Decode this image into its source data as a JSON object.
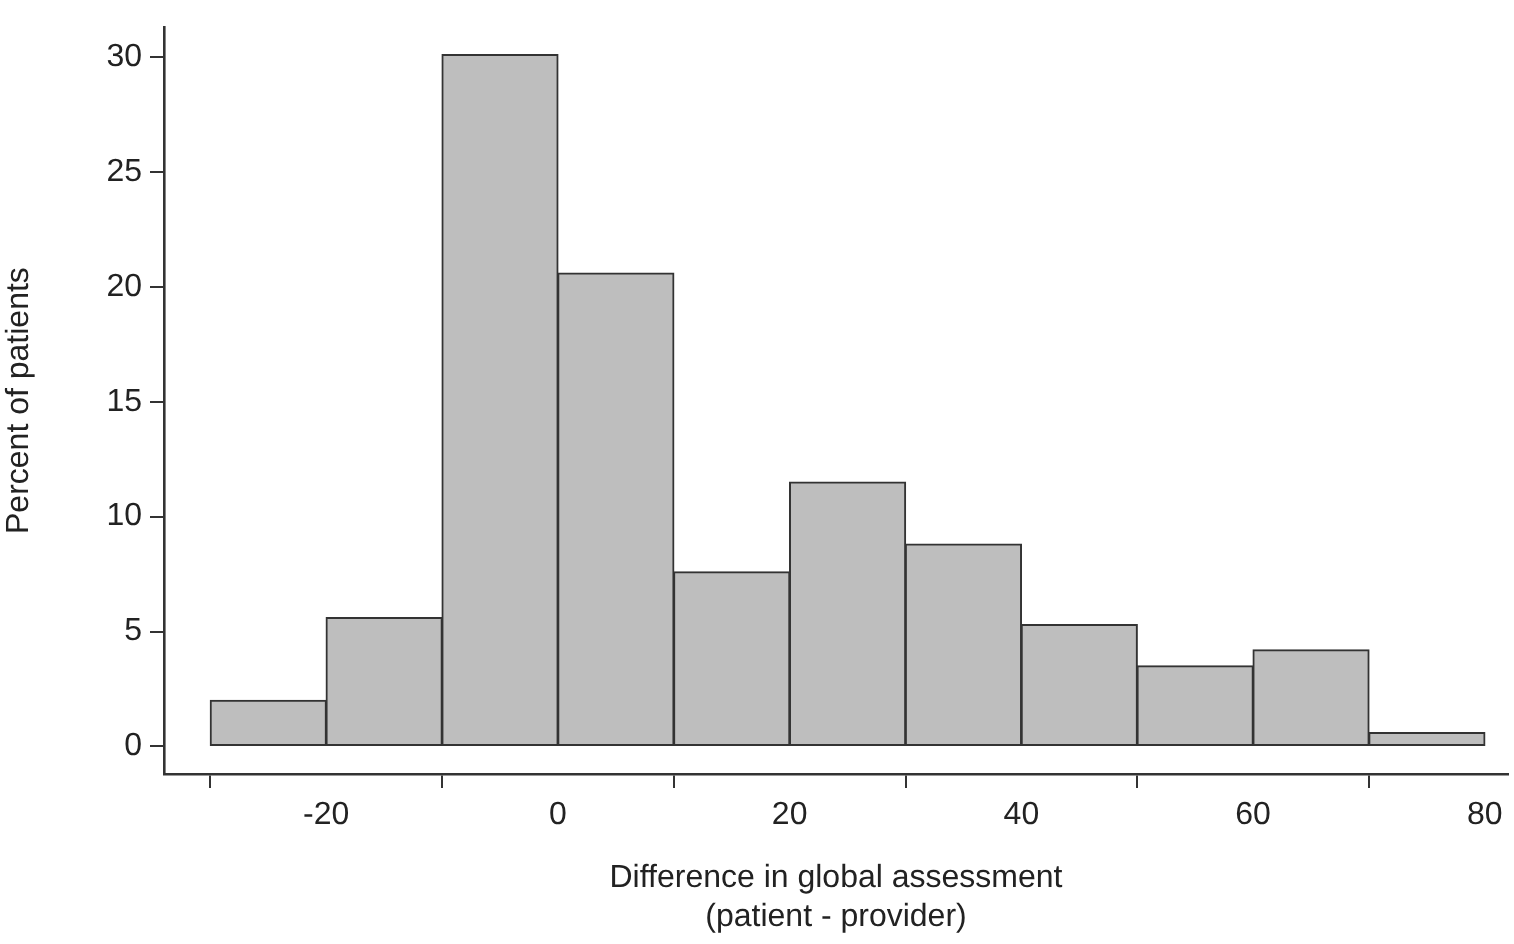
{
  "chart_data": {
    "type": "histogram",
    "xlabel": "Difference in global assessment\n(patient - provider)",
    "ylabel": "Percent of patients",
    "bins": [
      -30,
      -20,
      -10,
      0,
      10,
      20,
      30,
      40,
      50,
      60,
      70,
      80
    ],
    "values": [
      2.0,
      5.6,
      30.1,
      20.6,
      7.6,
      11.5,
      8.8,
      5.3,
      3.5,
      4.2,
      0.6
    ],
    "color": "#bebebe",
    "xlim": [
      -34,
      82
    ],
    "ylim": [
      -1.2,
      31.3
    ],
    "xticks": [
      -20,
      0,
      20,
      40,
      60,
      80
    ],
    "yticks": [
      0,
      5,
      10,
      15,
      20,
      25,
      30
    ],
    "grid": false,
    "legend": false
  }
}
